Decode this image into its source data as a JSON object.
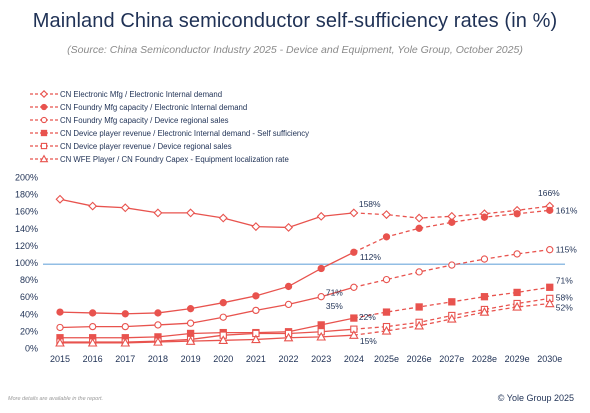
{
  "title": "Mainland China semiconductor self-sufficiency rates (in %)",
  "subtitle": "(Source: China Semiconductor Industry 2025 - Device and Equipment, Yole Group, October 2025)",
  "footnote": "More details are available in the report.",
  "copyright": "© Yole Group 2025",
  "colors": {
    "series": "#e8534e",
    "reference_line": "#6fa8dc",
    "text": "#1f3155"
  },
  "chart_data": {
    "type": "line",
    "x": [
      "2015",
      "2016",
      "2017",
      "2018",
      "2019",
      "2020",
      "2021",
      "2022",
      "2023",
      "2024",
      "2025e",
      "2026e",
      "2027e",
      "2028e",
      "2029e",
      "2030e"
    ],
    "ylim": [
      0,
      200
    ],
    "yticks": [
      "0%",
      "20%",
      "40%",
      "60%",
      "80%",
      "100%",
      "120%",
      "140%",
      "160%",
      "180%",
      "200%"
    ],
    "ytick_values": [
      0,
      20,
      40,
      60,
      80,
      100,
      120,
      140,
      160,
      180,
      200
    ],
    "reference_line": 98,
    "forecast_start": "2024",
    "legend_position": "top-left",
    "series": [
      {
        "name": "CN Electronic Mfg / Electronic Internal demand",
        "marker": "diamond",
        "filled": false,
        "values": [
          174,
          166,
          164,
          158,
          158,
          152,
          142,
          141,
          154,
          158,
          156,
          152,
          154,
          157,
          161,
          166
        ],
        "end_label": "166%",
        "mid_label": "158%"
      },
      {
        "name": "CN Foundry Mfg capacity / Electronic Internal demand",
        "marker": "circle",
        "filled": true,
        "values": [
          42,
          41,
          40,
          41,
          46,
          53,
          61,
          72,
          93,
          112,
          130,
          140,
          147,
          153,
          157,
          161
        ],
        "end_label": "161%",
        "mid_label": "112%"
      },
      {
        "name": "CN Foundry Mfg capacity / Device regional sales",
        "marker": "circle",
        "filled": false,
        "values": [
          24,
          25,
          25,
          27,
          29,
          36,
          44,
          51,
          60,
          71,
          80,
          89,
          97,
          104,
          110,
          115
        ],
        "end_label": "115%",
        "mid_label": "71%"
      },
      {
        "name": "CN Device player revenue / Electronic Internal demand - Self sufficiency",
        "marker": "square",
        "filled": true,
        "values": [
          12,
          12,
          12,
          13,
          17,
          18,
          18,
          19,
          27,
          35,
          42,
          48,
          54,
          60,
          65,
          71
        ],
        "end_label": "71%",
        "mid_label": "35%"
      },
      {
        "name": "CN Device player revenue / Device regional sales",
        "marker": "square",
        "filled": false,
        "values": [
          7,
          7,
          7,
          8,
          10,
          15,
          17,
          17,
          19,
          22,
          25,
          30,
          38,
          45,
          52,
          58
        ],
        "end_label": "58%",
        "mid_label": "22%"
      },
      {
        "name": "CN WFE Player / CN Foundry Capex - Equipment localization rate",
        "marker": "triangle",
        "filled": false,
        "values": [
          6,
          6,
          6,
          7,
          8,
          9,
          10,
          12,
          13,
          15,
          20,
          26,
          34,
          42,
          48,
          52
        ],
        "end_label": "52%",
        "mid_label": "15%"
      }
    ]
  }
}
